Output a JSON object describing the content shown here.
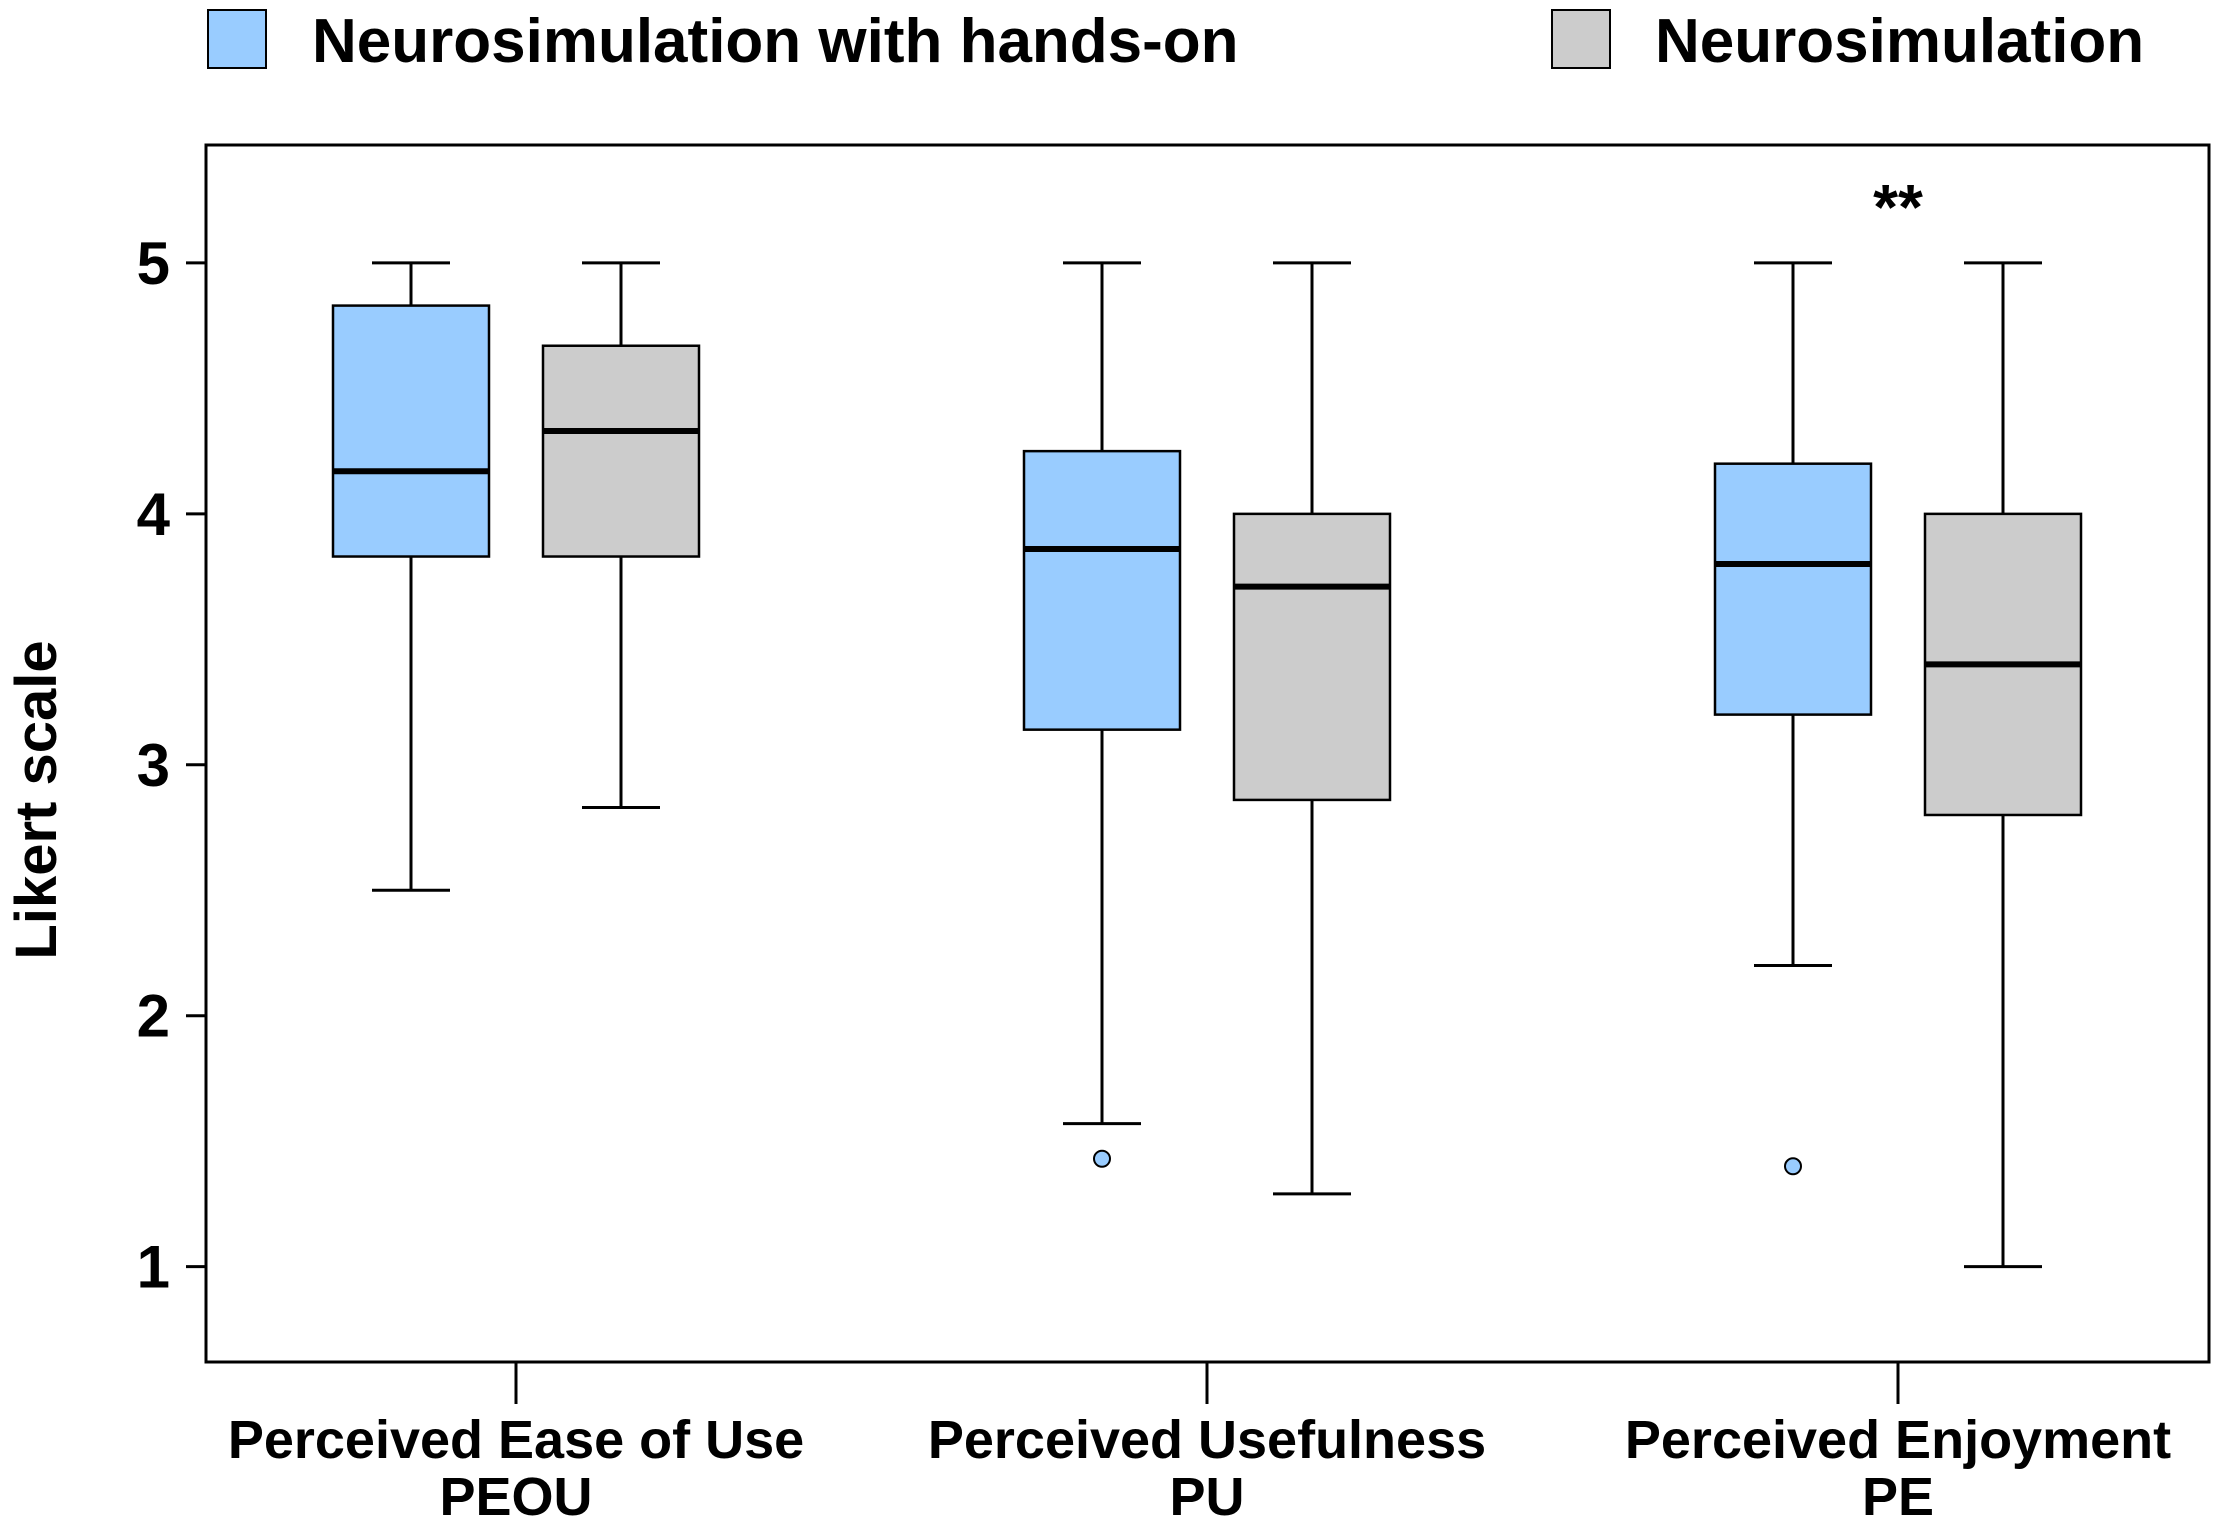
{
  "chart_data": {
    "type": "boxplot",
    "ylabel": "Likert scale",
    "ylim": [
      0.62,
      5.47
    ],
    "yticks": [
      "1",
      "2",
      "3",
      "4",
      "5"
    ],
    "legend_position": "top",
    "grid": false,
    "categories": [
      {
        "label": "Perceived Ease of Use",
        "abbr": "PEOU"
      },
      {
        "label": "Perceived Usefulness",
        "abbr": "PU"
      },
      {
        "label": "Perceived Enjoyment",
        "abbr": "PE"
      }
    ],
    "series": [
      {
        "name": "Neurosimulation with hands-on",
        "color": "#99ccff",
        "boxes": [
          {
            "whisker_low": 2.5,
            "q1": 3.83,
            "median": 4.17,
            "q3": 4.83,
            "whisker_high": 5.0,
            "outliers": []
          },
          {
            "whisker_low": 1.57,
            "q1": 3.14,
            "median": 3.86,
            "q3": 4.25,
            "whisker_high": 5.0,
            "outliers": [
              1.43
            ]
          },
          {
            "whisker_low": 2.2,
            "q1": 3.2,
            "median": 3.8,
            "q3": 4.2,
            "whisker_high": 5.0,
            "outliers": [
              1.4
            ]
          }
        ]
      },
      {
        "name": "Neurosimulation",
        "color": "#cccccc",
        "boxes": [
          {
            "whisker_low": 2.83,
            "q1": 3.83,
            "median": 4.33,
            "q3": 4.67,
            "whisker_high": 5.0,
            "outliers": []
          },
          {
            "whisker_low": 1.29,
            "q1": 2.86,
            "median": 3.71,
            "q3": 4.0,
            "whisker_high": 5.0,
            "outliers": []
          },
          {
            "whisker_low": 1.0,
            "q1": 2.8,
            "median": 3.4,
            "q3": 4.0,
            "whisker_high": 5.0,
            "outliers": []
          }
        ]
      }
    ],
    "annotations": [
      {
        "category": 2,
        "text": "**",
        "y": 5.23
      }
    ]
  }
}
